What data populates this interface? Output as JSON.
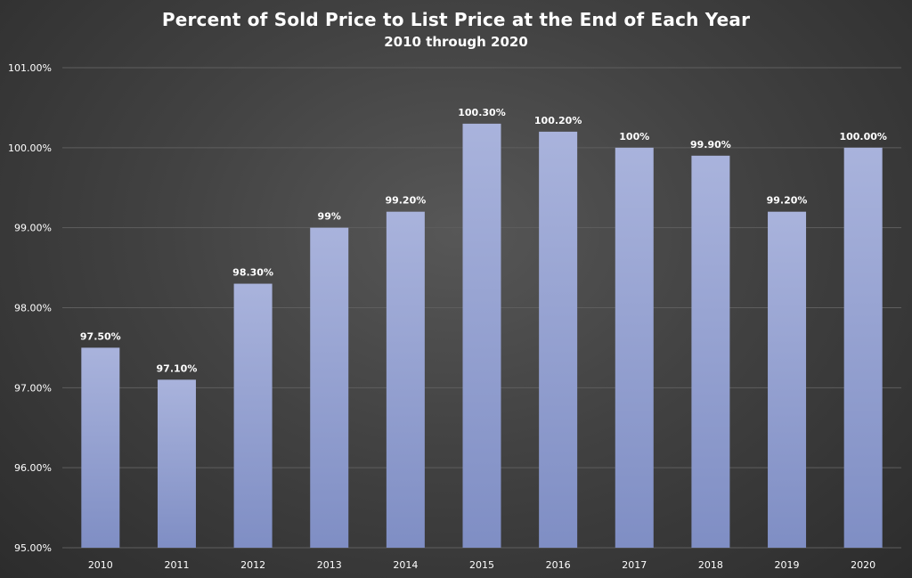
{
  "chart_data": {
    "type": "bar",
    "title": "Percent of Sold Price to List Price at the End of Each Year",
    "subtitle": "2010 through 2020",
    "xlabel": "",
    "ylabel": "",
    "categories": [
      "2010",
      "2011",
      "2012",
      "2013",
      "2014",
      "2015",
      "2016",
      "2017",
      "2018",
      "2019",
      "2020"
    ],
    "values": [
      97.5,
      97.1,
      98.3,
      99.0,
      99.2,
      100.3,
      100.2,
      100.0,
      99.9,
      99.2,
      100.0
    ],
    "data_labels": [
      "97.50%",
      "97.10%",
      "98.30%",
      "99%",
      "99.20%",
      "100.30%",
      "100.20%",
      "100%",
      "99.90%",
      "99.20%",
      "100.00%"
    ],
    "ylim": [
      95,
      101
    ],
    "y_ticks": [
      95,
      96,
      97,
      98,
      99,
      100,
      101
    ],
    "y_tick_labels": [
      "95.00%",
      "96.00%",
      "97.00%",
      "98.00%",
      "99.00%",
      "100.00%",
      "101.00%"
    ],
    "grid": true,
    "legend": "none",
    "colors": {
      "bar_top": "#a9b3dc",
      "bar_bottom": "#7f8ec4",
      "gridline": "#5e5e5e",
      "text": "#ffffff"
    }
  }
}
